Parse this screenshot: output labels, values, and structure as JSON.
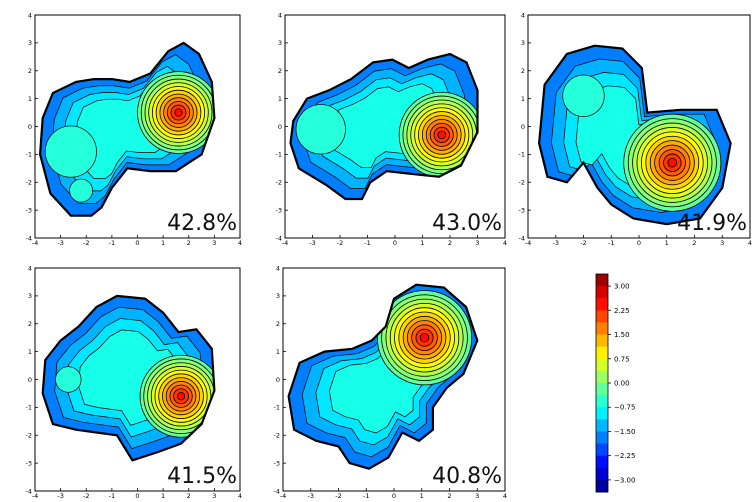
{
  "chart_data": {
    "type": "contour",
    "panels": [
      {
        "percent_label": "42.8%",
        "xlim": [
          -4,
          4
        ],
        "ylim": [
          -4,
          4
        ],
        "ticks": [
          "-4",
          "-3",
          "-2",
          "-1",
          "0",
          "1",
          "2",
          "3",
          "4"
        ],
        "outline": [
          [
            -3.7,
            0.3
          ],
          [
            -3.3,
            1.2
          ],
          [
            -2.4,
            1.6
          ],
          [
            -1.7,
            1.7
          ],
          [
            -1.0,
            1.7
          ],
          [
            -0.3,
            1.6
          ],
          [
            0.5,
            1.9
          ],
          [
            1.2,
            2.7
          ],
          [
            1.8,
            3.0
          ],
          [
            2.4,
            2.6
          ],
          [
            2.9,
            1.6
          ],
          [
            3.0,
            0.3
          ],
          [
            2.5,
            -1.0
          ],
          [
            1.5,
            -1.6
          ],
          [
            0.5,
            -1.6
          ],
          [
            -0.4,
            -1.5
          ],
          [
            -1.0,
            -2.2
          ],
          [
            -1.4,
            -2.9
          ],
          [
            -1.8,
            -3.2
          ],
          [
            -2.6,
            -3.2
          ],
          [
            -3.4,
            -2.4
          ],
          [
            -3.8,
            -1.0
          ]
        ],
        "peak": {
          "x": 1.6,
          "y": 0.5,
          "r": 1.6
        },
        "minor_wells": [
          {
            "x": -2.6,
            "y": -0.9,
            "r": 1.0,
            "level": -0.6
          },
          {
            "x": -2.2,
            "y": -2.3,
            "r": 0.45,
            "level": -0.6
          }
        ]
      },
      {
        "percent_label": "43.0%",
        "xlim": [
          -4,
          4
        ],
        "ylim": [
          -4,
          4
        ],
        "ticks": [
          "-4",
          "-3",
          "-2",
          "-1",
          "0",
          "1",
          "2",
          "3",
          "4"
        ],
        "outline": [
          [
            -3.7,
            0.2
          ],
          [
            -3.2,
            1.0
          ],
          [
            -2.4,
            1.3
          ],
          [
            -1.6,
            1.7
          ],
          [
            -0.8,
            2.3
          ],
          [
            -0.1,
            2.4
          ],
          [
            0.5,
            2.1
          ],
          [
            1.2,
            2.4
          ],
          [
            2.0,
            2.6
          ],
          [
            2.6,
            2.3
          ],
          [
            3.0,
            1.3
          ],
          [
            3.0,
            -0.2
          ],
          [
            2.4,
            -1.4
          ],
          [
            1.6,
            -1.8
          ],
          [
            0.6,
            -1.7
          ],
          [
            -0.3,
            -1.6
          ],
          [
            -0.9,
            -2.0
          ],
          [
            -1.2,
            -2.6
          ],
          [
            -1.8,
            -2.6
          ],
          [
            -2.5,
            -2.1
          ],
          [
            -3.5,
            -1.5
          ],
          [
            -3.8,
            -0.6
          ]
        ],
        "peak": {
          "x": 1.7,
          "y": -0.3,
          "r": 1.55
        },
        "minor_wells": [
          {
            "x": -2.7,
            "y": -0.1,
            "r": 0.9,
            "level": -0.6
          }
        ]
      },
      {
        "percent_label": "41.9%",
        "xlim": [
          -4,
          4
        ],
        "ylim": [
          -4,
          4
        ],
        "ticks": [
          "-4",
          "-3",
          "-2",
          "-1",
          "0",
          "1",
          "2",
          "3",
          "4"
        ],
        "outline": [
          [
            -3.6,
            -0.6
          ],
          [
            -3.4,
            1.5
          ],
          [
            -2.6,
            2.6
          ],
          [
            -1.6,
            2.9
          ],
          [
            -0.6,
            2.8
          ],
          [
            0.1,
            2.1
          ],
          [
            0.3,
            0.5
          ],
          [
            1.5,
            0.6
          ],
          [
            2.8,
            0.6
          ],
          [
            3.3,
            -0.6
          ],
          [
            3.0,
            -2.2
          ],
          [
            2.2,
            -3.3
          ],
          [
            1.0,
            -3.5
          ],
          [
            -0.2,
            -3.3
          ],
          [
            -1.0,
            -2.8
          ],
          [
            -1.5,
            -2.2
          ],
          [
            -2.0,
            -1.3
          ],
          [
            -2.6,
            -2.0
          ],
          [
            -3.3,
            -1.8
          ]
        ],
        "peak": {
          "x": 1.2,
          "y": -1.3,
          "r": 1.75
        },
        "minor_wells": [
          {
            "x": -2.0,
            "y": 1.1,
            "r": 0.75,
            "level": -0.6
          }
        ]
      },
      {
        "percent_label": "41.5%",
        "xlim": [
          -4,
          4
        ],
        "ylim": [
          -4,
          4
        ],
        "ticks": [
          "-4",
          "-3",
          "-2",
          "-1",
          "0",
          "1",
          "2",
          "3",
          "4"
        ],
        "outline": [
          [
            -3.7,
            -0.5
          ],
          [
            -3.6,
            0.7
          ],
          [
            -3.0,
            1.4
          ],
          [
            -2.3,
            1.9
          ],
          [
            -1.6,
            2.6
          ],
          [
            -0.8,
            3.0
          ],
          [
            0.3,
            2.9
          ],
          [
            1.0,
            2.4
          ],
          [
            1.6,
            1.7
          ],
          [
            2.3,
            1.8
          ],
          [
            2.9,
            1.1
          ],
          [
            3.0,
            -0.4
          ],
          [
            2.5,
            -1.6
          ],
          [
            1.7,
            -2.3
          ],
          [
            0.8,
            -2.6
          ],
          [
            -0.2,
            -2.9
          ],
          [
            -0.8,
            -2.0
          ],
          [
            -1.6,
            -1.9
          ],
          [
            -2.4,
            -1.8
          ],
          [
            -3.3,
            -1.6
          ]
        ],
        "peak": {
          "x": 1.7,
          "y": -0.6,
          "r": 1.6
        },
        "minor_wells": [
          {
            "x": -2.7,
            "y": 0.0,
            "r": 0.5,
            "level": -0.6
          }
        ]
      },
      {
        "percent_label": "40.8%",
        "xlim": [
          -4,
          4
        ],
        "ylim": [
          -4,
          4
        ],
        "ticks": [
          "-4",
          "-3",
          "-2",
          "-1",
          "0",
          "1",
          "2",
          "3",
          "4"
        ],
        "outline": [
          [
            -3.8,
            -0.6
          ],
          [
            -3.4,
            0.6
          ],
          [
            -2.5,
            1.0
          ],
          [
            -1.5,
            1.1
          ],
          [
            -0.8,
            1.4
          ],
          [
            -0.3,
            1.9
          ],
          [
            0.0,
            2.9
          ],
          [
            0.8,
            3.4
          ],
          [
            1.8,
            3.3
          ],
          [
            2.6,
            2.6
          ],
          [
            3.0,
            1.4
          ],
          [
            2.5,
            0.2
          ],
          [
            1.9,
            -0.3
          ],
          [
            1.4,
            -1.0
          ],
          [
            1.4,
            -1.8
          ],
          [
            0.9,
            -2.2
          ],
          [
            0.3,
            -1.9
          ],
          [
            -0.2,
            -2.8
          ],
          [
            -0.9,
            -3.2
          ],
          [
            -1.6,
            -3.0
          ],
          [
            -2.0,
            -2.4
          ],
          [
            -2.8,
            -2.2
          ],
          [
            -3.6,
            -1.8
          ]
        ],
        "peak": {
          "x": 1.1,
          "y": 1.5,
          "r": 1.7
        },
        "minor_wells": []
      }
    ],
    "colorbar": {
      "min": -3.375,
      "max": 3.375,
      "tick_values": [
        3.0,
        2.25,
        1.5,
        0.75,
        0.0,
        -0.75,
        -1.5,
        -2.25,
        -3.0
      ],
      "tick_labels": [
        "3.00",
        "2.25",
        "1.50",
        "0.75",
        "0.00",
        "−0.75",
        "−1.50",
        "−2.25",
        "−3.00"
      ],
      "colormap": "jet"
    }
  }
}
